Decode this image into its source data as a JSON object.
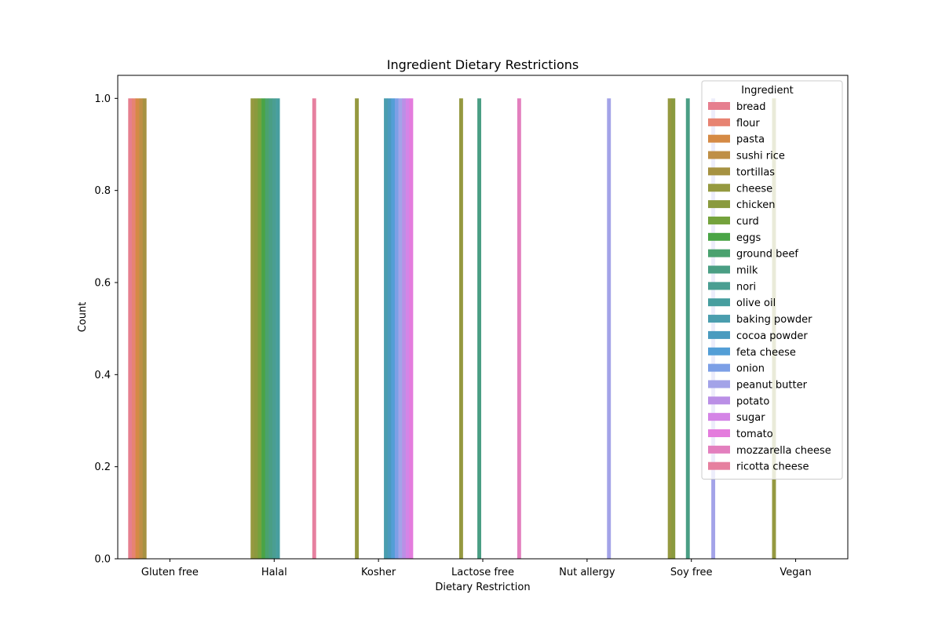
{
  "chart_data": {
    "type": "bar",
    "title": "Ingredient Dietary Restrictions",
    "xlabel": "Dietary Restriction",
    "ylabel": "Count",
    "ylim": [
      0,
      1.05
    ],
    "yticks": [
      "0.0",
      "0.2",
      "0.4",
      "0.6",
      "0.8",
      "1.0"
    ],
    "grid": false,
    "legend": {
      "title": "Ingredient",
      "placement": "top-right"
    },
    "categories": [
      "Gluten free",
      "Halal",
      "Kosher",
      "Lactose free",
      "Nut allergy",
      "Soy free",
      "Vegan"
    ],
    "series": [
      {
        "name": "bread",
        "color": "#e67f8f",
        "values": [
          1,
          0,
          0,
          0,
          0,
          0,
          0
        ]
      },
      {
        "name": "flour",
        "color": "#e78372",
        "values": [
          1,
          0,
          0,
          0,
          0,
          0,
          0
        ]
      },
      {
        "name": "pasta",
        "color": "#d58a45",
        "values": [
          1,
          0,
          0,
          0,
          0,
          0,
          0
        ]
      },
      {
        "name": "sushi rice",
        "color": "#bf8f46",
        "values": [
          1,
          0,
          0,
          0,
          0,
          0,
          0
        ]
      },
      {
        "name": "tortillas",
        "color": "#a69242",
        "values": [
          1,
          0,
          0,
          0,
          0,
          0,
          0
        ]
      },
      {
        "name": "cheese",
        "color": "#959940",
        "values": [
          0,
          1,
          1,
          1,
          0,
          1,
          1
        ]
      },
      {
        "name": "chicken",
        "color": "#8a9a3e",
        "values": [
          0,
          1,
          0,
          0,
          0,
          1,
          0
        ]
      },
      {
        "name": "curd",
        "color": "#74a23c",
        "values": [
          0,
          1,
          0,
          0,
          0,
          0,
          0
        ]
      },
      {
        "name": "eggs",
        "color": "#4aa446",
        "values": [
          0,
          1,
          0,
          0,
          0,
          0,
          0
        ]
      },
      {
        "name": "ground beef",
        "color": "#4aa26f",
        "values": [
          0,
          1,
          0,
          0,
          0,
          0,
          0
        ]
      },
      {
        "name": "milk",
        "color": "#4a9e84",
        "values": [
          0,
          1,
          0,
          1,
          0,
          1,
          0
        ]
      },
      {
        "name": "nori",
        "color": "#4a9e92",
        "values": [
          0,
          1,
          0,
          0,
          0,
          0,
          0
        ]
      },
      {
        "name": "olive oil",
        "color": "#479e9f",
        "values": [
          0,
          1,
          0,
          0,
          0,
          0,
          0
        ]
      },
      {
        "name": "baking powder",
        "color": "#4a9dae",
        "values": [
          0,
          0,
          1,
          0,
          0,
          0,
          0
        ]
      },
      {
        "name": "cocoa powder",
        "color": "#4a9bbf",
        "values": [
          0,
          0,
          1,
          0,
          0,
          0,
          0
        ]
      },
      {
        "name": "feta cheese",
        "color": "#539ed6",
        "values": [
          0,
          0,
          1,
          0,
          0,
          0,
          0
        ]
      },
      {
        "name": "onion",
        "color": "#7c9fe6",
        "values": [
          0,
          0,
          1,
          0,
          0,
          0,
          0
        ]
      },
      {
        "name": "peanut butter",
        "color": "#a3a3e8",
        "values": [
          0,
          0,
          1,
          0,
          1,
          1,
          0
        ]
      },
      {
        "name": "potato",
        "color": "#ba8fe6",
        "values": [
          0,
          0,
          1,
          0,
          0,
          0,
          0
        ]
      },
      {
        "name": "sugar",
        "color": "#d484e6",
        "values": [
          0,
          0,
          1,
          0,
          0,
          0,
          0
        ]
      },
      {
        "name": "tomato",
        "color": "#e47cdd",
        "values": [
          0,
          0,
          1,
          0,
          0,
          0,
          0
        ]
      },
      {
        "name": "mozzarella cheese",
        "color": "#e37fbe",
        "values": [
          0,
          0,
          0,
          1,
          0,
          0,
          0
        ]
      },
      {
        "name": "ricotta cheese",
        "color": "#e6809f",
        "values": [
          0,
          1,
          0,
          0,
          0,
          0,
          0
        ]
      }
    ]
  }
}
